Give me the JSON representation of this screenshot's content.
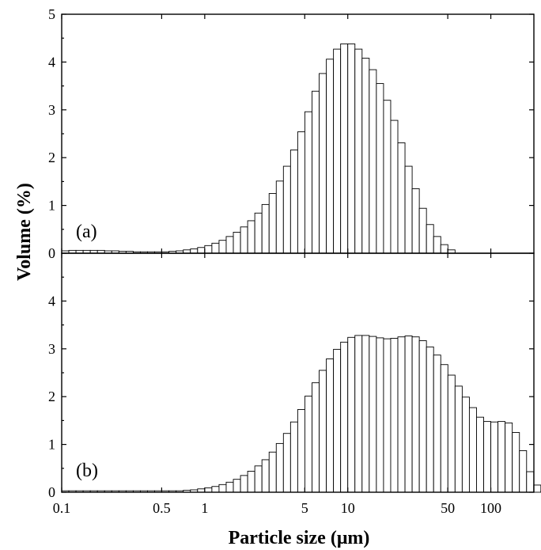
{
  "chart_data": {
    "type": "bar",
    "xlabel": "Particle size (μm)",
    "ylabel": "Volume (%)",
    "x_scale": "log",
    "xlim": [
      0.1,
      200
    ],
    "x_ticks": [
      0.1,
      0.5,
      1,
      5,
      10,
      50,
      100
    ],
    "x_tick_labels": [
      "0.1",
      "0.5",
      "1",
      "5",
      "10",
      "50",
      "100"
    ],
    "bin_edges_start": 0.1,
    "bins_per_decade": 20,
    "panels": [
      {
        "label": "(a)",
        "ylim": [
          0,
          5
        ],
        "y_ticks": [
          0,
          1,
          2,
          3,
          4,
          5
        ],
        "values": [
          0.05,
          0.06,
          0.06,
          0.06,
          0.06,
          0.06,
          0.05,
          0.05,
          0.04,
          0.04,
          0.03,
          0.03,
          0.03,
          0.03,
          0.03,
          0.04,
          0.05,
          0.07,
          0.09,
          0.12,
          0.16,
          0.21,
          0.27,
          0.35,
          0.44,
          0.55,
          0.68,
          0.84,
          1.02,
          1.25,
          1.51,
          1.82,
          2.16,
          2.54,
          2.96,
          3.39,
          3.76,
          4.06,
          4.27,
          4.38,
          4.38,
          4.27,
          4.08,
          3.84,
          3.55,
          3.2,
          2.78,
          2.31,
          1.82,
          1.35,
          0.94,
          0.6,
          0.35,
          0.18,
          0.07,
          0,
          0,
          0,
          0,
          0,
          0,
          0,
          0,
          0,
          0,
          0
        ]
      },
      {
        "label": "(b)",
        "ylim": [
          0,
          5
        ],
        "y_ticks": [
          0,
          1,
          2,
          3,
          4
        ],
        "values": [
          0.03,
          0.03,
          0.03,
          0.03,
          0.03,
          0.03,
          0.03,
          0.03,
          0.03,
          0.03,
          0.03,
          0.03,
          0.03,
          0.03,
          0.03,
          0.03,
          0.03,
          0.04,
          0.05,
          0.07,
          0.09,
          0.12,
          0.16,
          0.21,
          0.27,
          0.35,
          0.44,
          0.55,
          0.68,
          0.84,
          1.02,
          1.23,
          1.47,
          1.73,
          2.01,
          2.29,
          2.55,
          2.79,
          2.99,
          3.14,
          3.24,
          3.28,
          3.28,
          3.26,
          3.23,
          3.21,
          3.22,
          3.25,
          3.27,
          3.25,
          3.17,
          3.04,
          2.87,
          2.67,
          2.45,
          2.22,
          1.99,
          1.77,
          1.57,
          1.48,
          1.47,
          1.48,
          1.45,
          1.25,
          0.87,
          0.43,
          0.15,
          0.03
        ]
      }
    ]
  }
}
